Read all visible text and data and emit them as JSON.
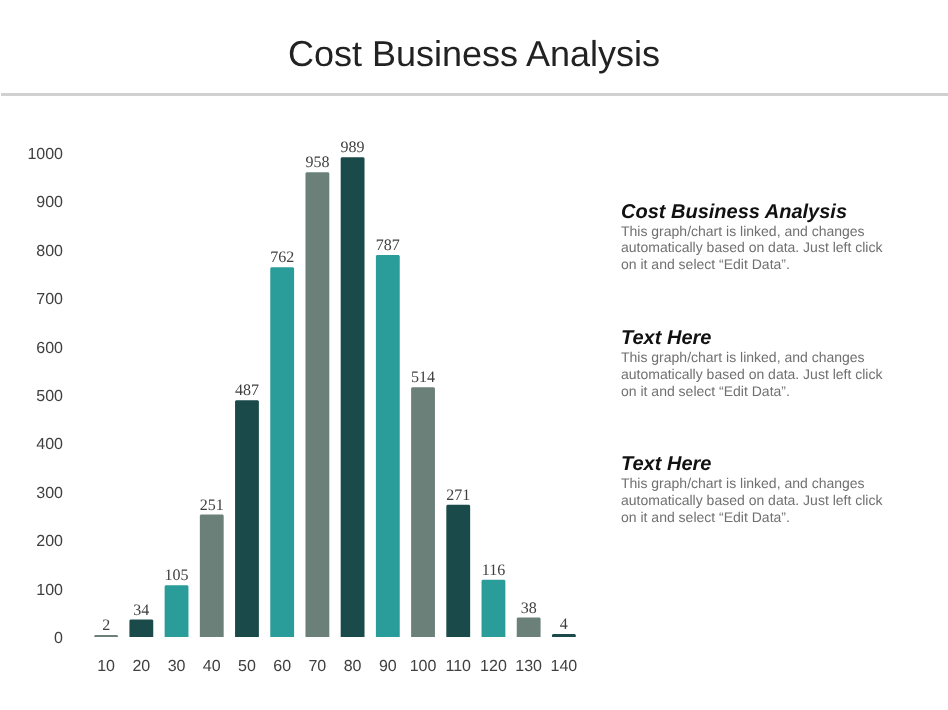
{
  "chart_data": {
    "type": "bar",
    "title": "Cost Business Analysis",
    "categories": [
      "10",
      "20",
      "30",
      "40",
      "50",
      "60",
      "70",
      "80",
      "90",
      "100",
      "110",
      "120",
      "130",
      "140"
    ],
    "values": [
      2,
      34,
      105,
      251,
      487,
      762,
      958,
      989,
      787,
      514,
      271,
      116,
      38,
      4
    ],
    "colors": [
      "#6b8079",
      "#1a4a4a",
      "#2a9d9a",
      "#6b8079",
      "#1a4a4a",
      "#2a9d9a",
      "#6b8079",
      "#1a4a4a",
      "#2a9d9a",
      "#6b8079",
      "#1a4a4a",
      "#2a9d9a",
      "#6b8079",
      "#1a4a4a"
    ],
    "ylim": [
      0,
      1000
    ],
    "yticks": [
      0,
      100,
      200,
      300,
      400,
      500,
      600,
      700,
      800,
      900,
      1000
    ],
    "data_labels": true,
    "grid": false,
    "annotations": [
      "Cost Business Analysis",
      "This graph/chart is linked, and changes automatically based on data. Just left click on it and select “Edit Data”.",
      "Text Here",
      "This graph/chart is linked, and changes automatically based on data. Just left click on it and select “Edit Data”.",
      "Text Here",
      "This graph/chart is linked, and changes automatically based on data. Just left click on it and select “Edit Data”."
    ]
  }
}
